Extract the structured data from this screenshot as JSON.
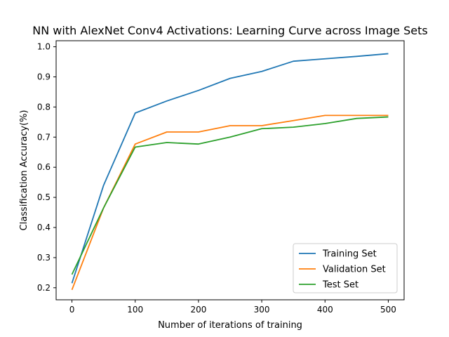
{
  "chart_data": {
    "type": "line",
    "title": "NN with AlexNet Conv4 Activations: Learning Curve across Image Sets",
    "xlabel": "Number of iterations of training",
    "ylabel": "Classification Accuracy(%)",
    "xlim": [
      -25,
      525
    ],
    "ylim": [
      0.16,
      1.02
    ],
    "xticks": [
      0,
      100,
      200,
      300,
      400,
      500
    ],
    "yticks": [
      0.2,
      0.3,
      0.4,
      0.5,
      0.6,
      0.7,
      0.8,
      0.9,
      1.0
    ],
    "xtick_labels": [
      "0",
      "100",
      "200",
      "300",
      "400",
      "500"
    ],
    "ytick_labels": [
      "0.2",
      "0.3",
      "0.4",
      "0.5",
      "0.6",
      "0.7",
      "0.8",
      "0.9",
      "1.0"
    ],
    "grid": false,
    "legend_position": "bottom-right",
    "x": [
      0,
      50,
      100,
      150,
      200,
      250,
      300,
      350,
      400,
      450,
      500
    ],
    "series": [
      {
        "name": "Training Set",
        "color": "#1f77b4",
        "values": [
          0.215,
          0.54,
          0.78,
          0.82,
          0.855,
          0.895,
          0.918,
          0.952,
          0.96,
          0.968,
          0.977
        ]
      },
      {
        "name": "Validation Set",
        "color": "#ff7f0e",
        "values": [
          0.193,
          0.465,
          0.677,
          0.717,
          0.717,
          0.738,
          0.738,
          0.755,
          0.772,
          0.772,
          0.772
        ]
      },
      {
        "name": "Test Set",
        "color": "#2ca02c",
        "values": [
          0.244,
          0.465,
          0.667,
          0.682,
          0.677,
          0.7,
          0.728,
          0.733,
          0.745,
          0.762,
          0.767
        ]
      }
    ]
  }
}
